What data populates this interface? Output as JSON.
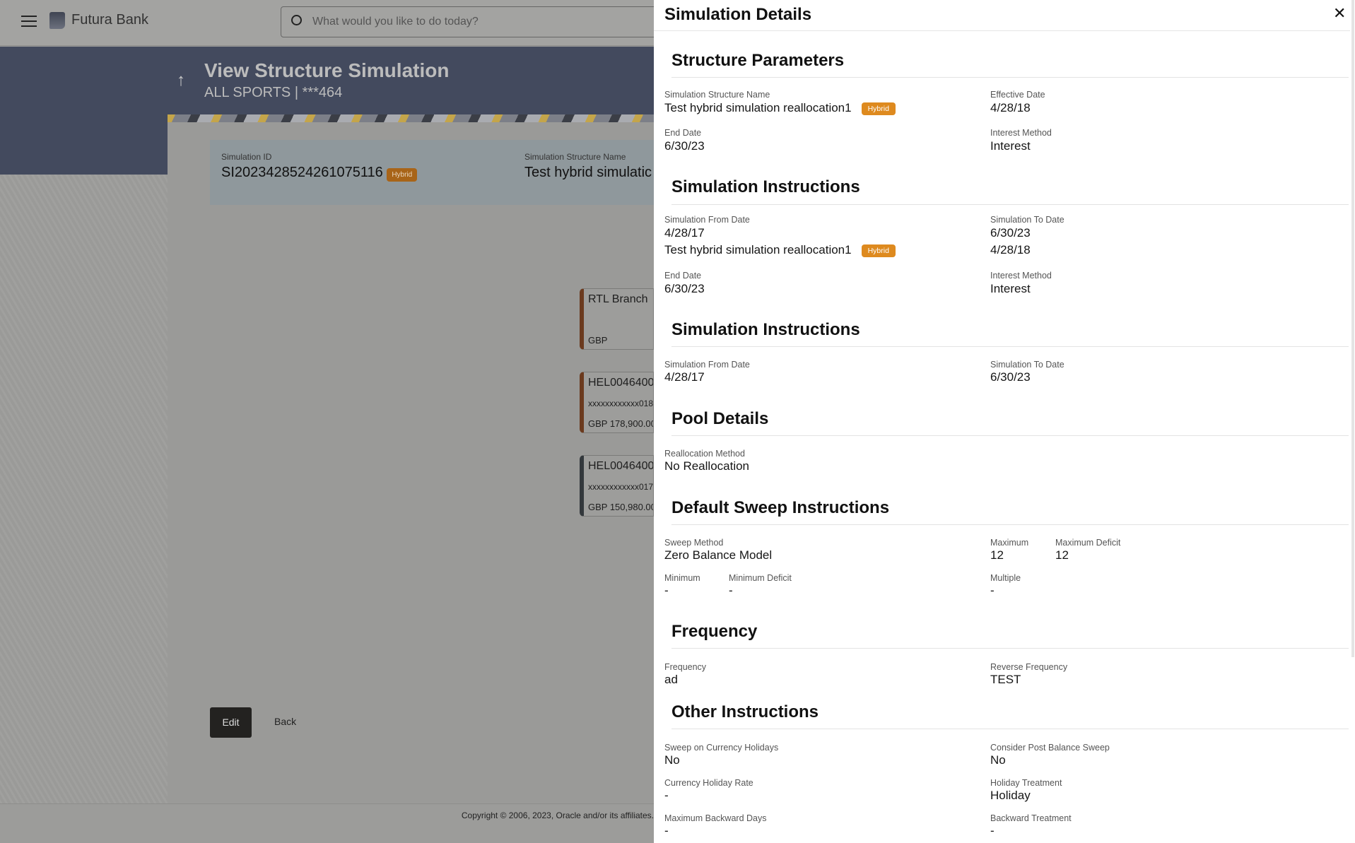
{
  "header": {
    "bank_name": "Futura Bank",
    "search_placeholder": "What would you like to do today?"
  },
  "page": {
    "title": "View Structure Simulation",
    "subtitle": "ALL SPORTS | ***464"
  },
  "info": {
    "sim_id_label": "Simulation ID",
    "sim_id": "SI2023428524261075116",
    "badge": "Hybrid",
    "name_label": "Simulation Structure Name",
    "name": "Test hybrid simulatic"
  },
  "accounts": [
    {
      "title": "RTL Branch",
      "number": "",
      "balance": "GBP",
      "color": "#6b3a1e"
    },
    {
      "title": "HEL0046400",
      "number": "xxxxxxxxxxxx018",
      "balance": "GBP 178,900.00",
      "color": "#6b3a1e"
    },
    {
      "title": "HEL0046400",
      "number": "xxxxxxxxxxxx017",
      "balance": "GBP 150,980.00",
      "color": "#33383c"
    }
  ],
  "actions": {
    "edit": "Edit",
    "back": "Back"
  },
  "footer": {
    "copyright": "Copyright © 2006, 2023, Oracle and/or its affiliates."
  },
  "panel": {
    "title": "Simulation Details",
    "structure": {
      "heading": "Structure Parameters",
      "name_label": "Simulation Structure Name",
      "name": "Test hybrid simulation reallocation1",
      "badge": "Hybrid",
      "eff_label": "Effective Date",
      "eff": "4/28/18",
      "end_label": "End Date",
      "end": "6/30/23",
      "int_label": "Interest Method",
      "int": "Interest"
    },
    "instr1": {
      "heading": "Simulation Instructions",
      "from_label": "Simulation From Date",
      "from": "4/28/17",
      "to_label": "Simulation To Date",
      "to": "6/30/23",
      "name": "Test hybrid simulation reallocation1",
      "badge": "Hybrid",
      "eff": "4/28/18",
      "end_label": "End Date",
      "end": "6/30/23",
      "int_label": "Interest Method",
      "int": "Interest"
    },
    "instr2": {
      "heading": "Simulation Instructions",
      "from_label": "Simulation From Date",
      "from": "4/28/17",
      "to_label": "Simulation To Date",
      "to": "6/30/23"
    },
    "pool": {
      "heading": "Pool Details",
      "realloc_label": "Reallocation Method",
      "realloc": "No Reallocation"
    },
    "sweep": {
      "heading": "Default Sweep Instructions",
      "method_label": "Sweep Method",
      "method": "Zero Balance Model",
      "max_label": "Maximum",
      "max": "12",
      "maxdef_label": "Maximum Deficit",
      "maxdef": "12",
      "min_label": "Minimum",
      "min": "-",
      "mindef_label": "Minimum Deficit",
      "mindef": "-",
      "mult_label": "Multiple",
      "mult": "-"
    },
    "freq": {
      "heading": "Frequency",
      "freq_label": "Frequency",
      "freq": "ad",
      "rev_label": "Reverse Frequency",
      "rev": "TEST"
    },
    "other": {
      "heading": "Other Instructions",
      "hol_label": "Sweep on Currency Holidays",
      "hol": "No",
      "post_label": "Consider Post Balance Sweep",
      "post": "No",
      "rate_label": "Currency Holiday Rate",
      "rate": "-",
      "treat_label": "Holiday Treatment",
      "treat": "Holiday",
      "days_label": "Maximum Backward Days",
      "days": "-",
      "back_label": "Backward Treatment",
      "back": "-"
    }
  }
}
